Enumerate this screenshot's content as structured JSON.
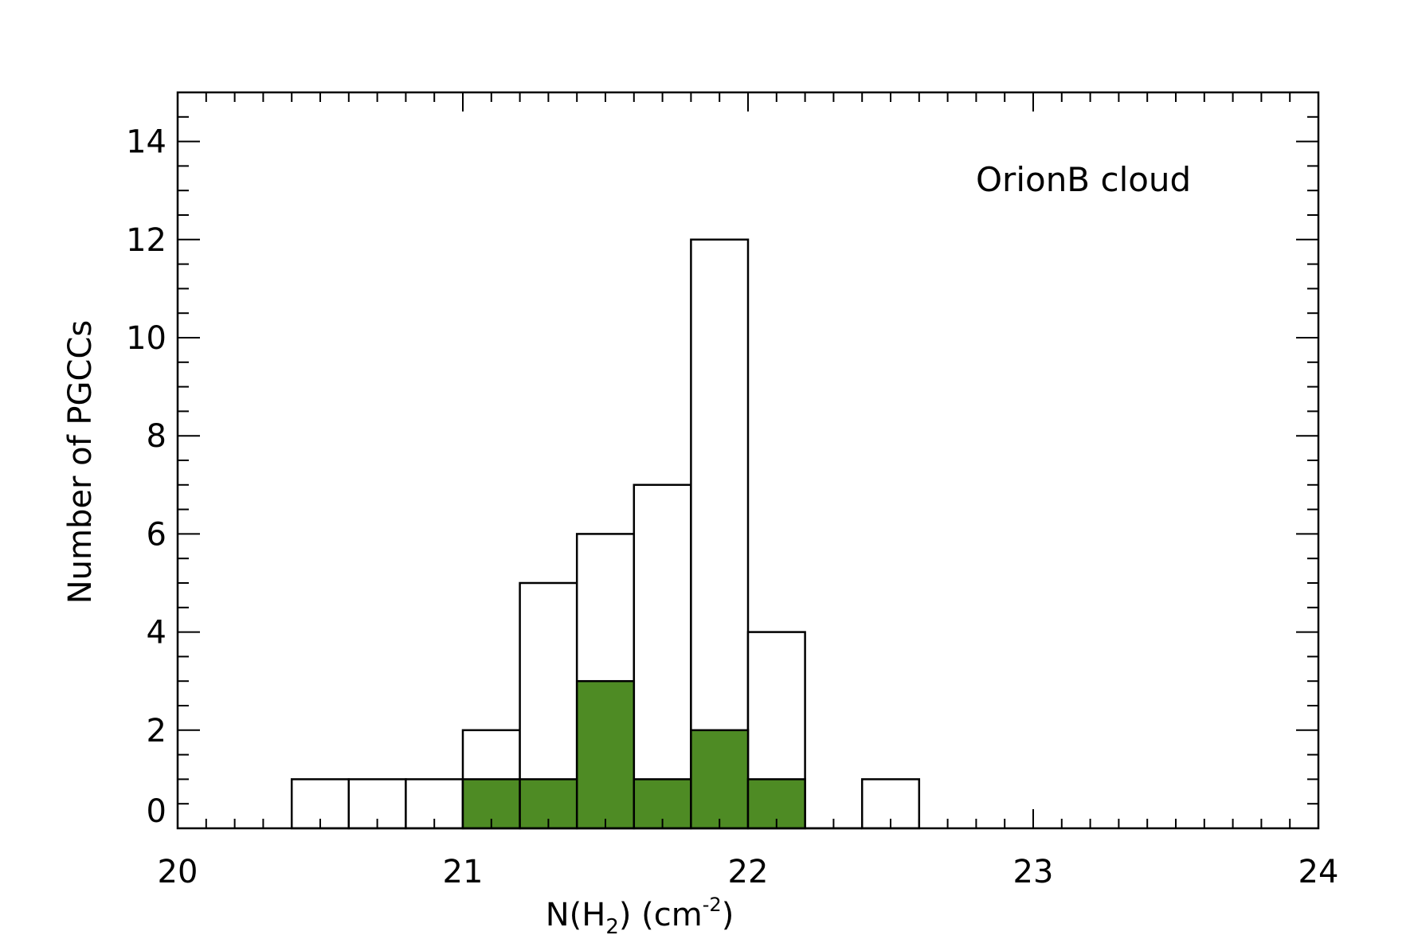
{
  "chart_data": {
    "type": "bar",
    "title": "",
    "annotation": "OrionB cloud",
    "xlabel": {
      "prefix": "N(H",
      "sub": "2",
      "middle": ") (cm",
      "sup": "-2",
      "suffix": ")"
    },
    "ylabel": "Number of PGCCs",
    "xlim": [
      20,
      24
    ],
    "ylim": [
      0,
      15
    ],
    "x_ticks": [
      20,
      21,
      22,
      23,
      24
    ],
    "y_ticks": [
      0,
      2,
      4,
      6,
      8,
      10,
      12,
      14
    ],
    "bin_width": 0.2,
    "bin_starts": [
      20.4,
      20.6,
      20.8,
      21.0,
      21.2,
      21.4,
      21.6,
      21.8,
      22.0,
      22.2,
      22.4
    ],
    "series": [
      {
        "values": [
          1,
          1,
          1,
          2,
          5,
          6,
          7,
          12,
          4,
          0,
          1
        ],
        "fill": "#ffffff",
        "style": "outline"
      },
      {
        "values": [
          0,
          0,
          0,
          1,
          1,
          3,
          1,
          2,
          1,
          0,
          0
        ],
        "fill": "#4e8b24",
        "style": "filled"
      }
    ],
    "grid": false,
    "legend": "none"
  }
}
